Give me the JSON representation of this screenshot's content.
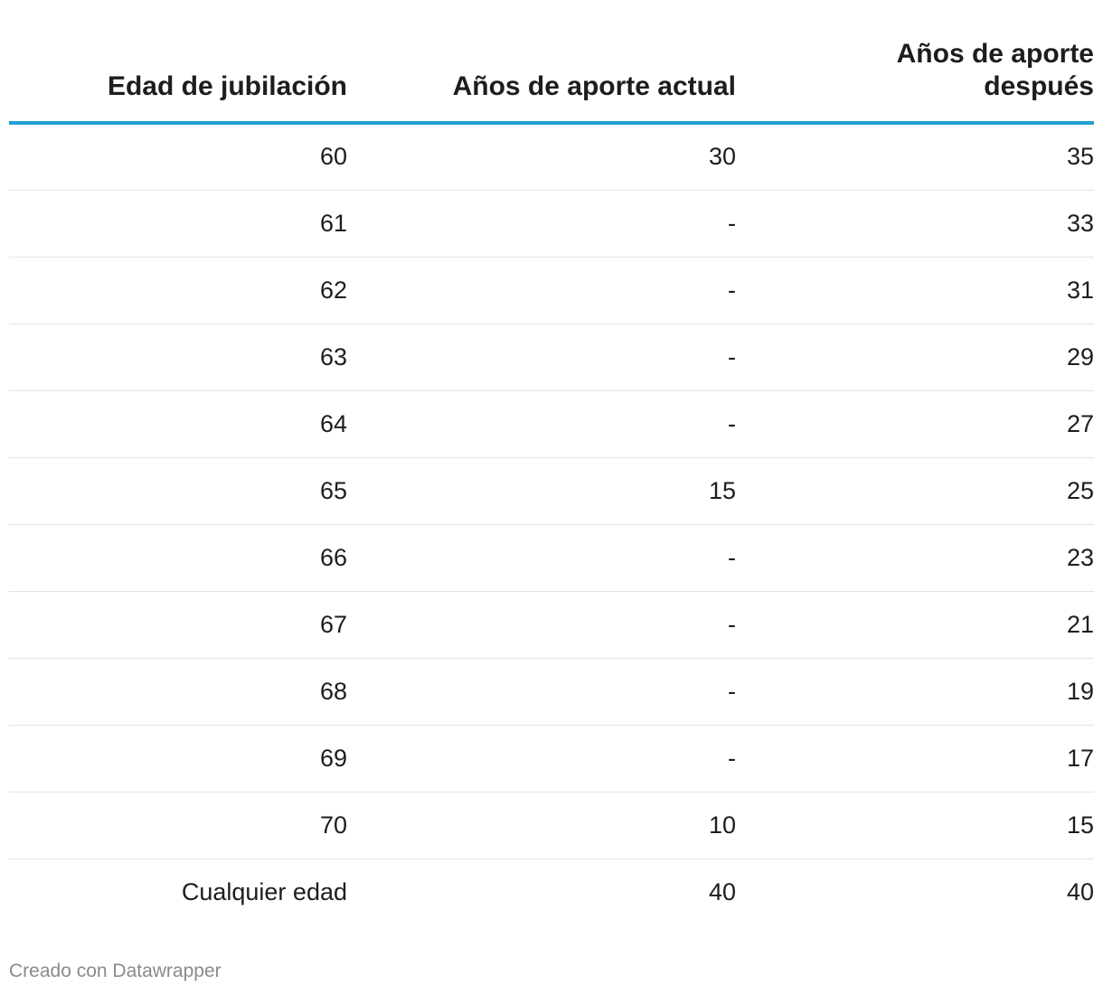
{
  "table": {
    "headers": [
      "Edad de jubilación",
      "Años de aporte actual",
      "Años de aporte después"
    ],
    "rows": [
      [
        "60",
        "30",
        "35"
      ],
      [
        "61",
        "-",
        "33"
      ],
      [
        "62",
        "-",
        "31"
      ],
      [
        "63",
        "-",
        "29"
      ],
      [
        "64",
        "-",
        "27"
      ],
      [
        "65",
        "15",
        "25"
      ],
      [
        "66",
        "-",
        "23"
      ],
      [
        "67",
        "-",
        "21"
      ],
      [
        "68",
        "-",
        "19"
      ],
      [
        "69",
        "-",
        "17"
      ],
      [
        "70",
        "10",
        "15"
      ],
      [
        "Cualquier edad",
        "40",
        "40"
      ]
    ]
  },
  "colors": {
    "header_rule": "#20a0cf",
    "row_rule": "#e3e3e3",
    "text": "#1d1d1d",
    "footer_text": "#8a8a8a"
  },
  "footer": {
    "credit": "Creado con Datawrapper"
  }
}
